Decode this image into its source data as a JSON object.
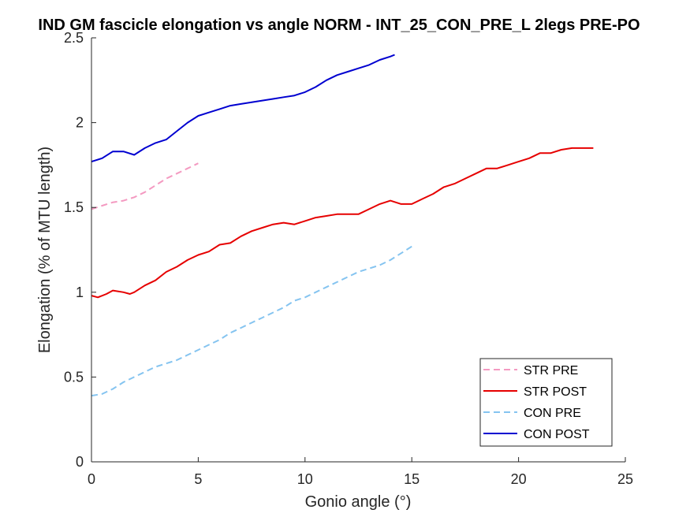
{
  "chart_data": {
    "type": "line",
    "title": "IND GM fascicle elongation vs angle NORM - INT_25_CON_PRE_L 2legs PRE-PO",
    "xlabel": "Gonio angle (°)",
    "ylabel": "Elongation (% of MTU length)",
    "xlim": [
      0,
      25
    ],
    "ylim": [
      0,
      2.5
    ],
    "xticks": [
      0,
      5,
      10,
      15,
      20,
      25
    ],
    "xtick_labels": [
      "0",
      "5",
      "10",
      "15",
      "20",
      "25"
    ],
    "yticks": [
      0,
      0.5,
      1,
      1.5,
      2,
      2.5
    ],
    "ytick_labels": [
      "0",
      "0.5",
      "1",
      "1.5",
      "2",
      "2.5"
    ],
    "grid": false,
    "legend_position": "bottom-right",
    "series": [
      {
        "name": "STR PRE",
        "color": "#f49ac1",
        "dash": "dashed",
        "x": [
          0,
          0.5,
          1,
          1.5,
          2,
          2.5,
          3,
          3.5,
          4,
          4.5,
          5
        ],
        "y": [
          1.49,
          1.51,
          1.53,
          1.54,
          1.56,
          1.59,
          1.63,
          1.67,
          1.7,
          1.73,
          1.76
        ]
      },
      {
        "name": "STR POST",
        "color": "#e60000",
        "dash": "solid",
        "x": [
          0,
          0.3,
          0.7,
          1,
          1.5,
          1.8,
          2,
          2.5,
          3,
          3.5,
          4,
          4.5,
          5,
          5.5,
          6,
          6.5,
          7,
          7.5,
          8,
          8.5,
          9,
          9.5,
          10,
          10.5,
          11,
          11.5,
          12,
          12.5,
          13,
          13.5,
          14,
          14.5,
          15,
          15.5,
          16,
          16.5,
          17,
          17.5,
          18,
          18.5,
          19,
          19.5,
          20,
          20.5,
          21,
          21.5,
          22,
          22.5,
          23,
          23.5
        ],
        "y": [
          0.98,
          0.97,
          0.99,
          1.01,
          1.0,
          0.99,
          1.0,
          1.04,
          1.07,
          1.12,
          1.15,
          1.19,
          1.22,
          1.24,
          1.28,
          1.29,
          1.33,
          1.36,
          1.38,
          1.4,
          1.41,
          1.4,
          1.42,
          1.44,
          1.45,
          1.46,
          1.46,
          1.46,
          1.49,
          1.52,
          1.54,
          1.52,
          1.52,
          1.55,
          1.58,
          1.62,
          1.64,
          1.67,
          1.7,
          1.73,
          1.73,
          1.75,
          1.77,
          1.79,
          1.82,
          1.82,
          1.84,
          1.85,
          1.85,
          1.85
        ]
      },
      {
        "name": "CON PRE",
        "color": "#85c4f0",
        "dash": "dashed",
        "x": [
          0,
          0.5,
          1,
          1.5,
          2,
          2.5,
          3,
          3.5,
          4,
          4.5,
          5,
          5.5,
          6,
          6.5,
          7,
          7.5,
          8,
          8.5,
          9,
          9.5,
          10,
          10.5,
          11,
          11.5,
          12,
          12.5,
          13,
          13.5,
          14,
          14.5,
          15
        ],
        "y": [
          0.39,
          0.4,
          0.43,
          0.47,
          0.5,
          0.53,
          0.56,
          0.58,
          0.6,
          0.63,
          0.66,
          0.69,
          0.72,
          0.76,
          0.79,
          0.82,
          0.85,
          0.88,
          0.91,
          0.95,
          0.97,
          1.0,
          1.03,
          1.06,
          1.09,
          1.12,
          1.14,
          1.16,
          1.19,
          1.23,
          1.27
        ]
      },
      {
        "name": "CON POST",
        "color": "#0000d0",
        "dash": "solid",
        "x": [
          0,
          0.5,
          1,
          1.5,
          2,
          2.5,
          3,
          3.5,
          4,
          4.5,
          5,
          5.5,
          6,
          6.5,
          7,
          7.5,
          8,
          8.5,
          9,
          9.5,
          10,
          10.5,
          11,
          11.5,
          12,
          12.5,
          13,
          13.5,
          14,
          14.2
        ],
        "y": [
          1.77,
          1.79,
          1.83,
          1.83,
          1.81,
          1.85,
          1.88,
          1.9,
          1.95,
          2.0,
          2.04,
          2.06,
          2.08,
          2.1,
          2.11,
          2.12,
          2.13,
          2.14,
          2.15,
          2.16,
          2.18,
          2.21,
          2.25,
          2.28,
          2.3,
          2.32,
          2.34,
          2.37,
          2.39,
          2.4
        ]
      }
    ]
  }
}
